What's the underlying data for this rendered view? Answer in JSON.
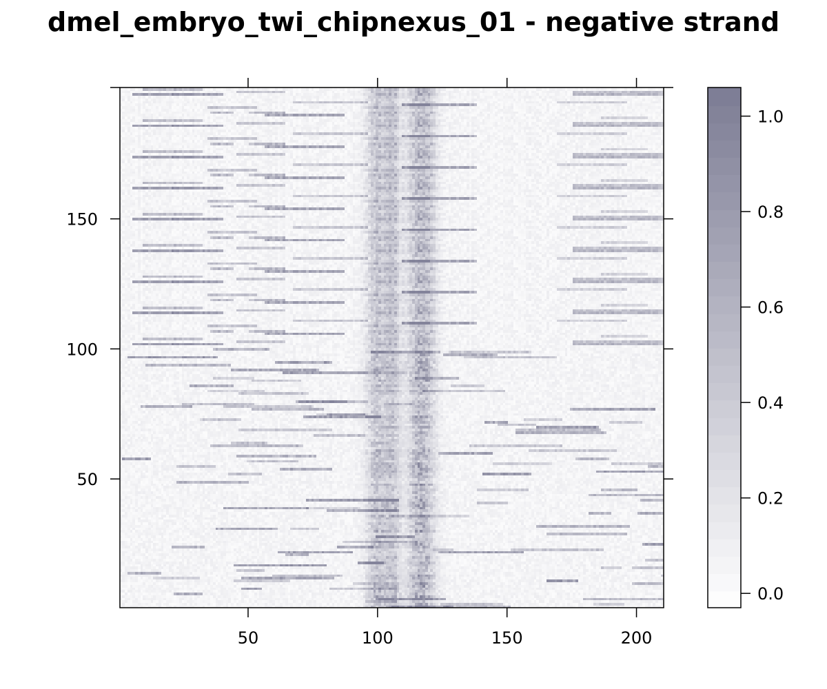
{
  "chart_data": {
    "type": "heatmap",
    "title": "dmel_embryo_twi_chipnexus_01 - negative strand",
    "xlabel": "",
    "ylabel": "",
    "xlim": [
      1,
      210
    ],
    "ylim": [
      1,
      200
    ],
    "x_ticks": [
      50,
      100,
      150,
      200
    ],
    "x_tick_labels": [
      "50",
      "100",
      "150",
      "200"
    ],
    "y_ticks": [
      50,
      100,
      150
    ],
    "y_tick_labels": [
      "50",
      "100",
      "150"
    ],
    "grid": false,
    "n_rows": 200,
    "n_cols": 210,
    "colorbar": {
      "range": [
        -0.03,
        1.06
      ],
      "ticks": [
        0.0,
        0.2,
        0.4,
        0.6,
        0.8,
        1.0
      ],
      "tick_labels": [
        "0.0",
        "0.2",
        "0.4",
        "0.6",
        "0.8",
        "1.0"
      ],
      "color_low": "#ffffff",
      "color_high": "#7c7c94"
    },
    "enrichment_columns": [
      {
        "center": 100,
        "width": 4,
        "intensity": 0.55
      },
      {
        "center": 106,
        "width": 3,
        "intensity": 0.5
      },
      {
        "center": 117,
        "width": 5,
        "intensity": 0.75
      }
    ],
    "max_value": 1.0
  }
}
